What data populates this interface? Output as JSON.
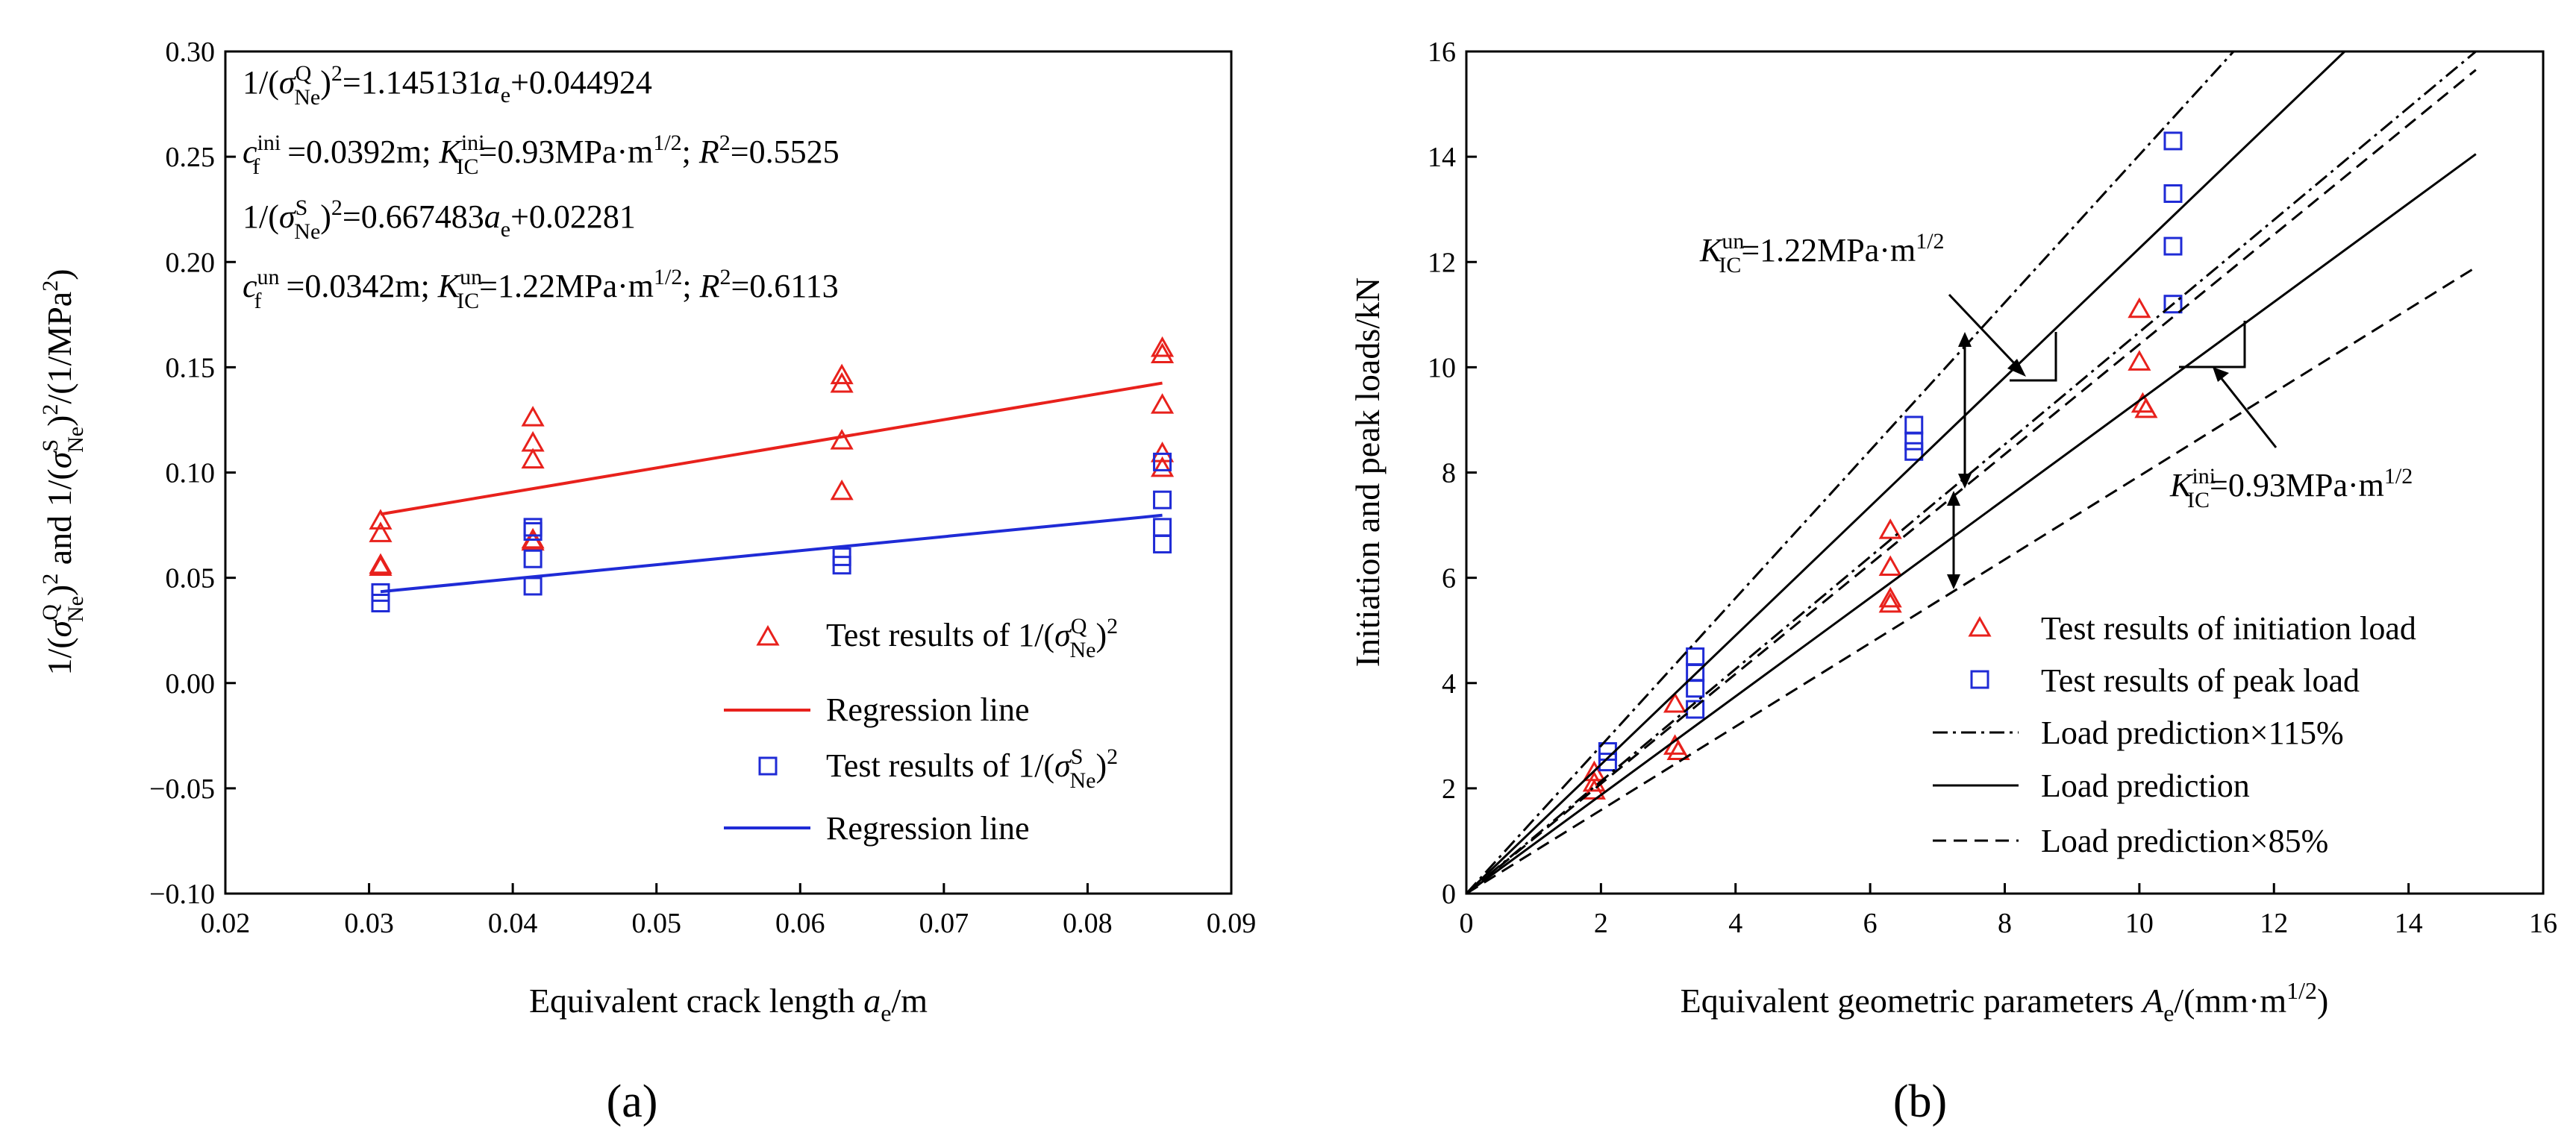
{
  "figure": {
    "panel_a_label": "(a)",
    "panel_b_label": "(b)"
  },
  "chart_data": [
    {
      "type": "scatter",
      "panel": "(a)",
      "xlabel": "Equivalent crack length a_e/m",
      "ylabel": "1/(σ_Ne^Q)^2 and 1/(σ_Ne^S)^2/(1/MPa^2)",
      "xlim": [
        0.02,
        0.09
      ],
      "ylim": [
        -0.1,
        0.3
      ],
      "x_ticks": [
        "0.02",
        "0.03",
        "0.04",
        "0.05",
        "0.06",
        "0.07",
        "0.08",
        "0.09"
      ],
      "y_ticks": [
        "0.30",
        "0.25",
        "0.20",
        "0.15",
        "0.10",
        "0.05",
        "0.00",
        "−0.05",
        "−0.10"
      ],
      "legend_position": "lower-right",
      "annotations": [
        "1/(σ_Ne^Q)^2=1.145131a_e+0.044924",
        "c_f^ini=0.0392m; K_IC^ini=0.93MPa·m^1/2; R^2=0.5525",
        "1/(σ_Ne^S)^2=0.667483a_e+0.02281",
        "c_f^un=0.0342m; K_IC^un=1.22MPa·m^1/2; R^2=0.6113"
      ],
      "series": [
        {
          "name": "Test results of 1/(σ_Ne^Q)^2",
          "marker": "triangle",
          "color": "#e8211c",
          "x": [
            0.0308,
            0.0308,
            0.0308,
            0.0308,
            0.0414,
            0.0414,
            0.0414,
            0.0414,
            0.0414,
            0.0629,
            0.0629,
            0.0629,
            0.0629,
            0.0852,
            0.0852,
            0.0852,
            0.0852,
            0.0852
          ],
          "y": [
            0.077,
            0.071,
            0.056,
            0.055,
            0.126,
            0.114,
            0.106,
            0.068,
            0.067,
            0.146,
            0.142,
            0.115,
            0.091,
            0.159,
            0.156,
            0.132,
            0.109,
            0.102
          ]
        },
        {
          "name": "Regression line",
          "color": "#e8211c",
          "x": [
            0.0308,
            0.0852
          ],
          "y": [
            0.0802,
            0.1425
          ]
        },
        {
          "name": "Test results of 1/(σ_Ne^S)^2",
          "marker": "square",
          "color": "#1f2bd6",
          "x": [
            0.0308,
            0.0308,
            0.0414,
            0.0414,
            0.0414,
            0.0414,
            0.0629,
            0.0629,
            0.0852,
            0.0852,
            0.0852,
            0.0852
          ],
          "y": [
            0.043,
            0.038,
            0.074,
            0.072,
            0.059,
            0.046,
            0.06,
            0.056,
            0.105,
            0.087,
            0.074,
            0.066
          ]
        },
        {
          "name": "Regression line",
          "color": "#1f2bd6",
          "x": [
            0.0308,
            0.0852
          ],
          "y": [
            0.0434,
            0.0797
          ]
        }
      ]
    },
    {
      "type": "scatter",
      "panel": "(b)",
      "xlabel": "Equivalent geometric parameters A_e/(mm·m^1/2)",
      "ylabel": "Initiation and peak loads/kN",
      "xlim": [
        0,
        16
      ],
      "ylim": [
        0,
        16
      ],
      "x_ticks": [
        "0",
        "2",
        "4",
        "6",
        "8",
        "10",
        "12",
        "14",
        "16"
      ],
      "y_ticks": [
        "16",
        "14",
        "12",
        "10",
        "8",
        "6",
        "4",
        "2",
        "0"
      ],
      "legend_position": "lower-right",
      "annotations": [
        "K_IC^un=1.22MPa·m^1/2",
        "K_IC^ini=0.93MPa·m^1/2"
      ],
      "series": [
        {
          "name": "Test results of initiation load",
          "marker": "triangle",
          "color": "#e8211c",
          "x": [
            1.9,
            1.9,
            1.9,
            3.1,
            3.1,
            3.15,
            6.3,
            6.3,
            6.3,
            6.3,
            10.0,
            10.0,
            10.05,
            10.1
          ],
          "y": [
            2.3,
            2.1,
            1.95,
            3.6,
            2.8,
            2.7,
            6.9,
            6.2,
            5.6,
            5.5,
            11.1,
            10.1,
            9.3,
            9.2
          ]
        },
        {
          "name": "Test results of peak load",
          "marker": "square",
          "color": "#1f2bd6",
          "x": [
            2.1,
            2.1,
            3.4,
            3.4,
            3.4,
            3.4,
            6.65,
            6.65,
            6.65,
            10.5,
            10.5,
            10.5,
            10.5
          ],
          "y": [
            2.7,
            2.5,
            4.5,
            4.2,
            3.9,
            3.5,
            8.9,
            8.6,
            8.4,
            14.3,
            13.3,
            12.3,
            11.2
          ]
        },
        {
          "name": "Load prediction×115%",
          "style": "dashdot",
          "lines": [
            {
              "x": [
                0,
                11.4
              ],
              "y": [
                0,
                16
              ]
            },
            {
              "x": [
                0,
                15
              ],
              "y": [
                0,
                16
              ]
            }
          ]
        },
        {
          "name": "Load prediction",
          "style": "solid",
          "lines": [
            {
              "x": [
                0,
                13.05
              ],
              "y": [
                0,
                16
              ]
            },
            {
              "x": [
                0,
                15
              ],
              "y": [
                0,
                14.05
              ]
            }
          ]
        },
        {
          "name": "Load prediction×85%",
          "style": "dashed",
          "lines": [
            {
              "x": [
                0,
                15
              ],
              "y": [
                0,
                15.65
              ]
            },
            {
              "x": [
                0,
                15
              ],
              "y": [
                0,
                11.9
              ]
            }
          ]
        }
      ]
    }
  ]
}
